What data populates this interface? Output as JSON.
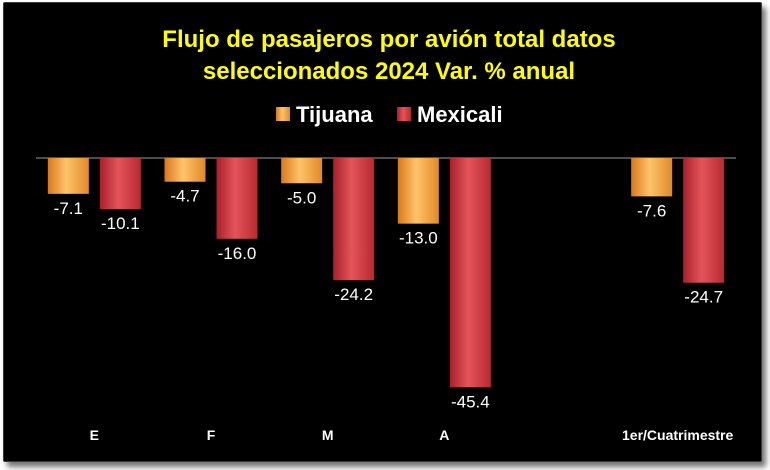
{
  "chart_data": {
    "type": "bar",
    "title": [
      "Flujo de pasajeros por avión total datos",
      "seleccionados 2024 Var. % anual"
    ],
    "categories": [
      "E",
      "F",
      "M",
      "A",
      "",
      "1er/Cuatrimestre"
    ],
    "series": [
      {
        "name": "Tijuana",
        "color": "#f5a23a",
        "values": [
          -7.1,
          -4.7,
          -5.0,
          -13.0,
          null,
          -7.6
        ]
      },
      {
        "name": "Mexicali",
        "color": "#d2363a",
        "values": [
          -10.1,
          -16.0,
          -24.2,
          -45.4,
          null,
          -24.7
        ]
      }
    ],
    "ylim": [
      -50,
      0
    ],
    "grid": false,
    "legend_position": "top"
  }
}
